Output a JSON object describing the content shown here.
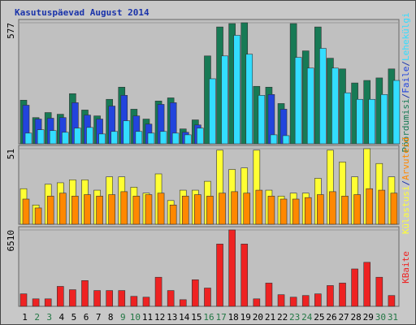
{
  "chart_data": [
    {
      "type": "bar",
      "title": "Kasutuspäevad August 2014",
      "legend_separator": "/",
      "ylim": [
        0,
        577
      ],
      "yticks": [
        577
      ],
      "series": [
        {
          "name": "Pöördumisi",
          "color": "#177a55",
          "values": [
            208,
            125,
            149,
            141,
            239,
            161,
            133,
            212,
            270,
            165,
            118,
            204,
            219,
            71,
            114,
            419,
            557,
            573,
            577,
            274,
            270,
            192,
            573,
            443,
            557,
            408,
            357,
            290,
            302,
            314,
            357
          ]
        },
        {
          "name": "Faile",
          "color": "#2244dd",
          "values": [
            184,
            118,
            122,
            125,
            196,
            137,
            118,
            180,
            231,
            133,
            94,
            188,
            196,
            55,
            90,
            0,
            0,
            0,
            0,
            0,
            235,
            165,
            0,
            0,
            0,
            0,
            0,
            0,
            0,
            0,
            0
          ]
        },
        {
          "name": "Lehekülgi",
          "color": "#33ddff",
          "values": [
            51,
            67,
            63,
            55,
            75,
            78,
            47,
            59,
            110,
            59,
            51,
            59,
            51,
            43,
            75,
            310,
            419,
            517,
            427,
            231,
            43,
            39,
            412,
            361,
            455,
            361,
            243,
            212,
            212,
            235,
            302
          ]
        }
      ]
    },
    {
      "type": "bar",
      "legend_separator": "/",
      "ylim": [
        0,
        51
      ],
      "yticks": [
        51
      ],
      "series": [
        {
          "name": "Külastusi",
          "color": "#ffff33",
          "values": [
            24,
            13,
            27,
            28,
            30,
            30,
            23,
            32,
            32,
            25,
            21,
            34,
            16,
            23,
            23,
            29,
            50,
            37,
            38,
            50,
            23,
            19,
            21,
            21,
            31,
            50,
            42,
            32,
            51,
            41,
            32
          ]
        },
        {
          "name": "Arvuteid",
          "color": "#ff8800",
          "values": [
            17,
            11,
            19,
            21,
            19,
            20,
            19,
            20,
            22,
            19,
            20,
            21,
            13,
            19,
            20,
            19,
            21,
            22,
            21,
            23,
            19,
            17,
            17,
            18,
            20,
            22,
            19,
            20,
            24,
            23,
            21
          ]
        }
      ]
    },
    {
      "type": "bar",
      "ylim": [
        0,
        6510
      ],
      "yticks": [
        6510
      ],
      "categories": [
        "1",
        "2",
        "3",
        "4",
        "5",
        "6",
        "7",
        "8",
        "9",
        "10",
        "11",
        "12",
        "13",
        "14",
        "15",
        "16",
        "17",
        "18",
        "19",
        "20",
        "21",
        "22",
        "23",
        "24",
        "25",
        "26",
        "27",
        "28",
        "29",
        "30",
        "31"
      ],
      "category_colors": [
        "#000",
        "#227744",
        "#227744",
        "#000",
        "#000",
        "#000",
        "#000",
        "#000",
        "#227744",
        "#227744",
        "#000",
        "#000",
        "#000",
        "#000",
        "#000",
        "#227744",
        "#227744",
        "#000",
        "#000",
        "#000",
        "#000",
        "#000",
        "#227744",
        "#227744",
        "#000",
        "#000",
        "#000",
        "#000",
        "#000",
        "#227744",
        "#227744"
      ],
      "series": [
        {
          "name": "KBaite",
          "color": "#ee2222",
          "values": [
            1062,
            637,
            637,
            1699,
            1416,
            2195,
            1345,
            1345,
            1345,
            850,
            779,
            2478,
            1345,
            566,
            2266,
            1558,
            5310,
            6510,
            5310,
            637,
            1982,
            991,
            779,
            920,
            1062,
            1770,
            1982,
            3186,
            3752,
            2478,
            920
          ]
        }
      ]
    }
  ]
}
